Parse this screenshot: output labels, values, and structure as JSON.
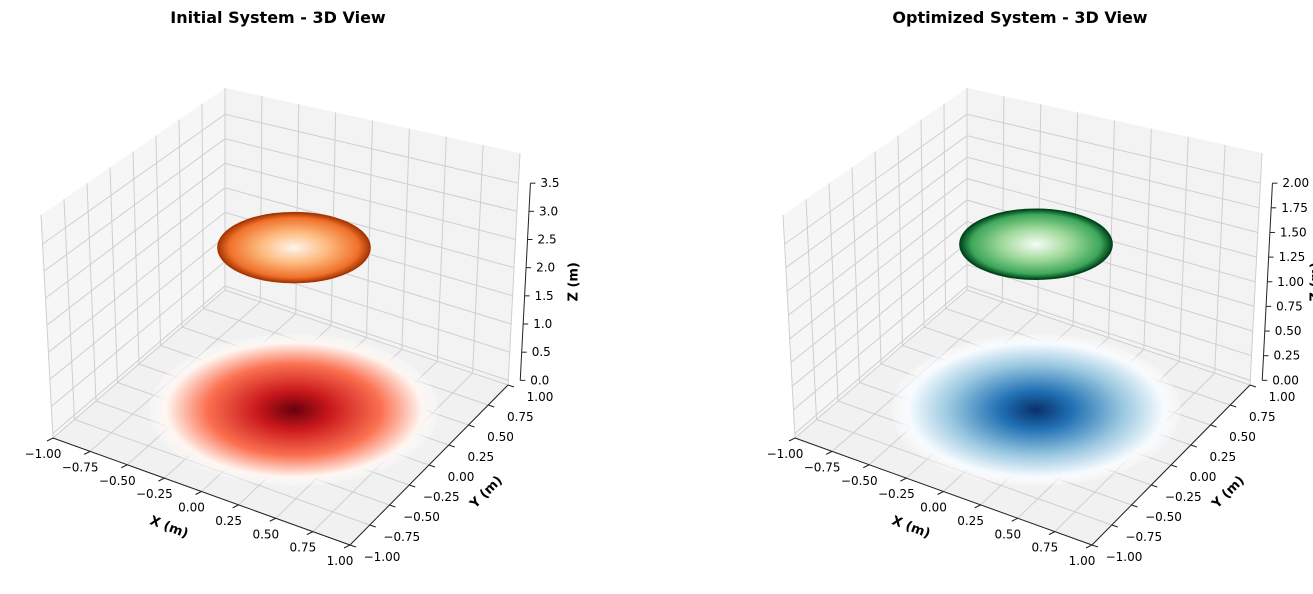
{
  "colors": {
    "pane_floor": "#f1f1f1",
    "pane_back": "#f3f3f3",
    "pane_side": "#f6f6f6",
    "grid": "#cfcfcf",
    "axis_line": "#222222"
  },
  "chart_data": [
    {
      "type": "surface3d",
      "title": "Initial System - 3D View",
      "xlabel": "X (m)",
      "ylabel": "Y (m)",
      "zlabel": "Z (m)",
      "xlim": [
        -1.0,
        1.0
      ],
      "ylim": [
        -1.0,
        1.0
      ],
      "zlim": [
        0.0,
        3.5
      ],
      "x_ticks": [
        "−1.00",
        "−0.75",
        "−0.50",
        "−0.25",
        "0.00",
        "0.25",
        "0.50",
        "0.75",
        "1.00"
      ],
      "y_ticks": [
        "−1.00",
        "−0.75",
        "−0.50",
        "−0.25",
        "0.00",
        "0.25",
        "0.50",
        "0.75",
        "1.00"
      ],
      "z_ticks": [
        "0.0",
        "0.5",
        "1.0",
        "1.5",
        "2.0",
        "2.5",
        "3.0",
        "3.5"
      ],
      "surfaces": [
        {
          "kind": "disk",
          "radius": 0.5,
          "z": 3.0,
          "colormap": "Oranges",
          "colors": [
            "#fff5eb",
            "#fdb97d",
            "#f0712b",
            "#a63603"
          ]
        },
        {
          "kind": "disk",
          "radius": 1.0,
          "z": 0.0,
          "colormap": "Reds",
          "colors": [
            "#fff5f0",
            "#fb7050",
            "#c9171b",
            "#67000d"
          ]
        }
      ]
    },
    {
      "type": "surface3d",
      "title": "Optimized System - 3D View",
      "xlabel": "X (m)",
      "ylabel": "Y (m)",
      "zlabel": "Z (m)",
      "xlim": [
        -1.0,
        1.0
      ],
      "ylim": [
        -1.0,
        1.0
      ],
      "zlim": [
        0.0,
        2.0
      ],
      "x_ticks": [
        "−1.00",
        "−0.75",
        "−0.50",
        "−0.25",
        "0.00",
        "0.25",
        "0.50",
        "0.75",
        "1.00"
      ],
      "y_ticks": [
        "−1.00",
        "−0.75",
        "−0.50",
        "−0.25",
        "0.00",
        "0.25",
        "0.50",
        "0.75",
        "1.00"
      ],
      "z_ticks": [
        "0.00",
        "0.25",
        "0.50",
        "0.75",
        "1.00",
        "1.25",
        "1.50",
        "1.75",
        "2.00"
      ],
      "surfaces": [
        {
          "kind": "disk",
          "radius": 0.5,
          "z": 1.75,
          "colormap": "Greens",
          "colors": [
            "#f7fcf5",
            "#a0d99b",
            "#3da75a",
            "#00441b"
          ]
        },
        {
          "kind": "disk",
          "radius": 1.0,
          "z": 0.0,
          "colormap": "Blues",
          "colors": [
            "#f7fbff",
            "#9ac8e0",
            "#2070b4",
            "#08306b"
          ]
        }
      ]
    }
  ]
}
